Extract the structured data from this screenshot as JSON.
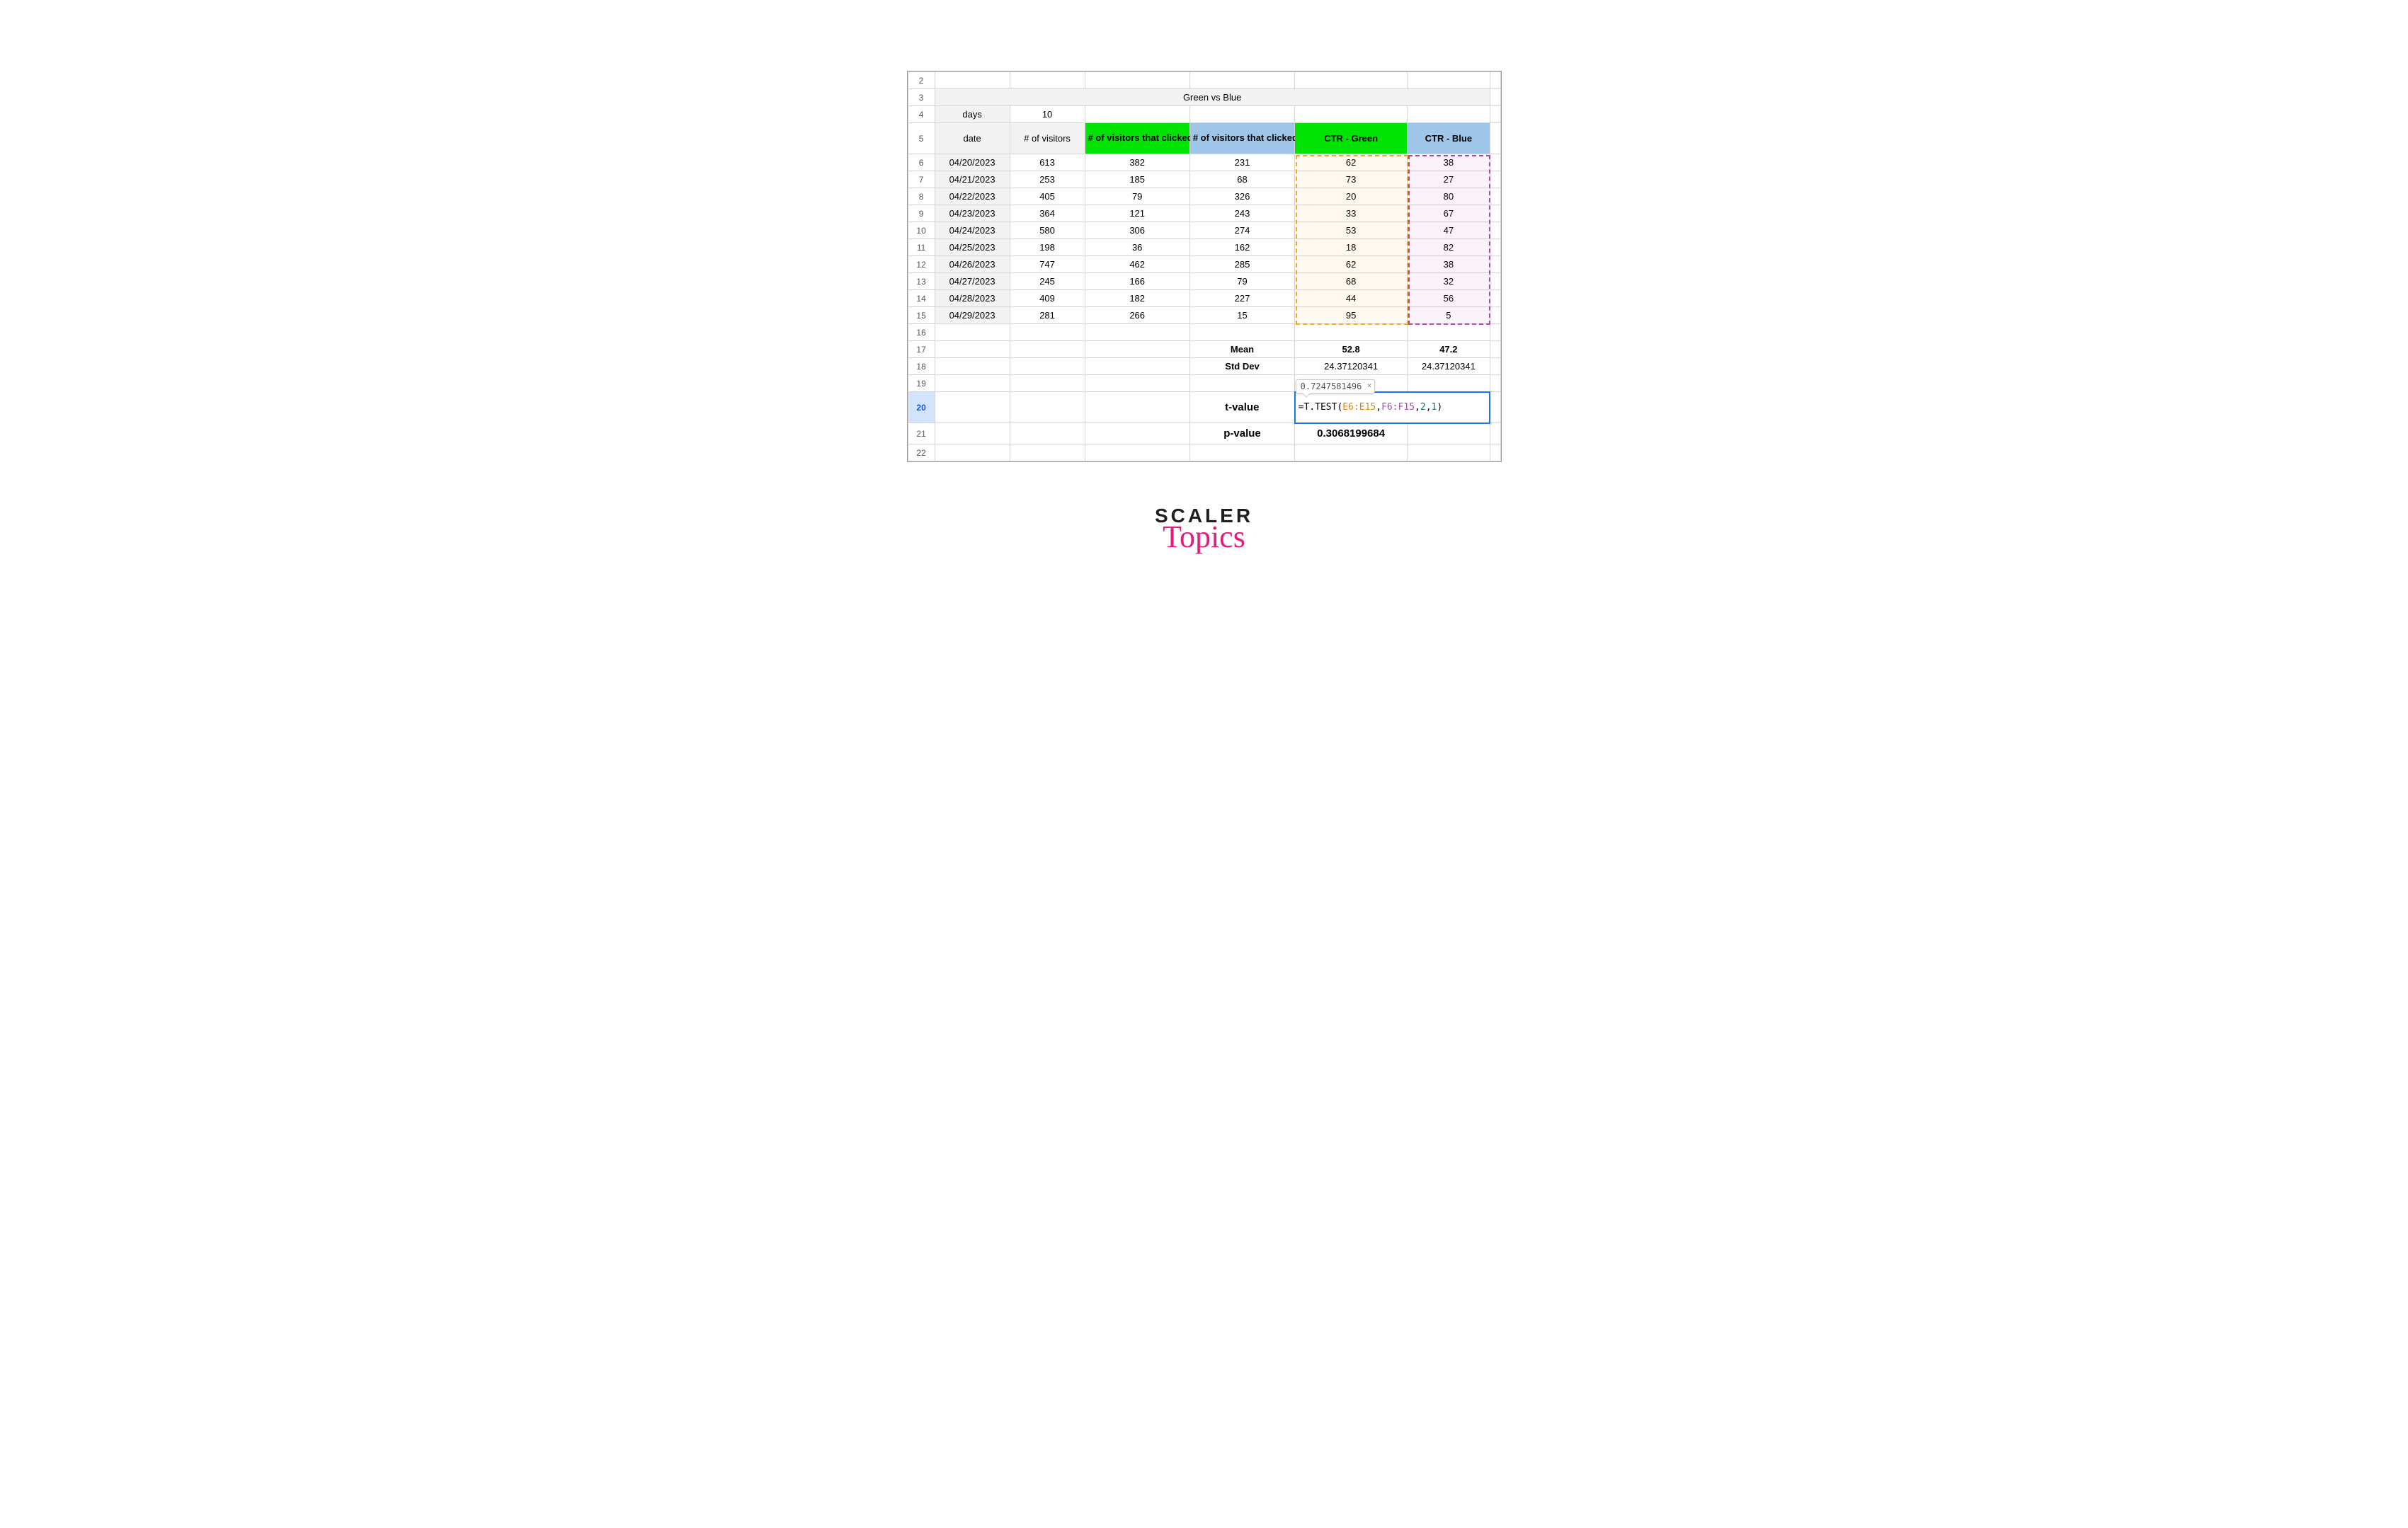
{
  "brand": {
    "line1": "SCALER",
    "line2": "Topics"
  },
  "colors": {
    "header_plain": "#f3f3f3",
    "header_green": "#00e303",
    "header_blue": "#9fc5e8",
    "sel_orange": "#f5a623",
    "sel_purple": "#a64ca6",
    "formula_border": "#1a73e8",
    "text": "#000000"
  },
  "formula_tooltip": "0.7247581496",
  "formula_parts": {
    "eq": "=",
    "fn": "T.TEST",
    "open": "(",
    "rng1": "E6:E15",
    "c1": ",",
    "rng2": "F6:F15",
    "c2": ",",
    "n1": "2",
    "c3": ",",
    "n2": "1",
    "close": ")"
  },
  "title": "Green vs Blue",
  "row4": {
    "label": "days",
    "value": "10"
  },
  "headers": {
    "date": "date",
    "visitors": "# of visitors",
    "clicked_green": "# of visitors that clicked Green",
    "clicked_blue": "# of visitors that clicked Blue",
    "ctr_green": "CTR - Green",
    "ctr_blue": "CTR - Blue"
  },
  "data": [
    {
      "row": 6,
      "date": "04/20/2023",
      "visitors": "613",
      "cg": "382",
      "cb": "231",
      "ctrg": "62",
      "ctrb": "38"
    },
    {
      "row": 7,
      "date": "04/21/2023",
      "visitors": "253",
      "cg": "185",
      "cb": "68",
      "ctrg": "73",
      "ctrb": "27"
    },
    {
      "row": 8,
      "date": "04/22/2023",
      "visitors": "405",
      "cg": "79",
      "cb": "326",
      "ctrg": "20",
      "ctrb": "80"
    },
    {
      "row": 9,
      "date": "04/23/2023",
      "visitors": "364",
      "cg": "121",
      "cb": "243",
      "ctrg": "33",
      "ctrb": "67"
    },
    {
      "row": 10,
      "date": "04/24/2023",
      "visitors": "580",
      "cg": "306",
      "cb": "274",
      "ctrg": "53",
      "ctrb": "47"
    },
    {
      "row": 11,
      "date": "04/25/2023",
      "visitors": "198",
      "cg": "36",
      "cb": "162",
      "ctrg": "18",
      "ctrb": "82"
    },
    {
      "row": 12,
      "date": "04/26/2023",
      "visitors": "747",
      "cg": "462",
      "cb": "285",
      "ctrg": "62",
      "ctrb": "38"
    },
    {
      "row": 13,
      "date": "04/27/2023",
      "visitors": "245",
      "cg": "166",
      "cb": "79",
      "ctrg": "68",
      "ctrb": "32"
    },
    {
      "row": 14,
      "date": "04/28/2023",
      "visitors": "409",
      "cg": "182",
      "cb": "227",
      "ctrg": "44",
      "ctrb": "56"
    },
    {
      "row": 15,
      "date": "04/29/2023",
      "visitors": "281",
      "cg": "266",
      "cb": "15",
      "ctrg": "95",
      "ctrb": "5"
    }
  ],
  "stats": {
    "mean_label": "Mean",
    "mean_g": "52.8",
    "mean_b": "47.2",
    "std_label": "Std Dev",
    "std_g": "24.37120341",
    "std_b": "24.37120341",
    "t_label": "t-value",
    "p_label": "p-value",
    "p_value": "0.3068199684"
  },
  "row_numbers": [
    2,
    3,
    4,
    5,
    6,
    7,
    8,
    9,
    10,
    11,
    12,
    13,
    14,
    15,
    16,
    17,
    18,
    19,
    20,
    21,
    22
  ]
}
